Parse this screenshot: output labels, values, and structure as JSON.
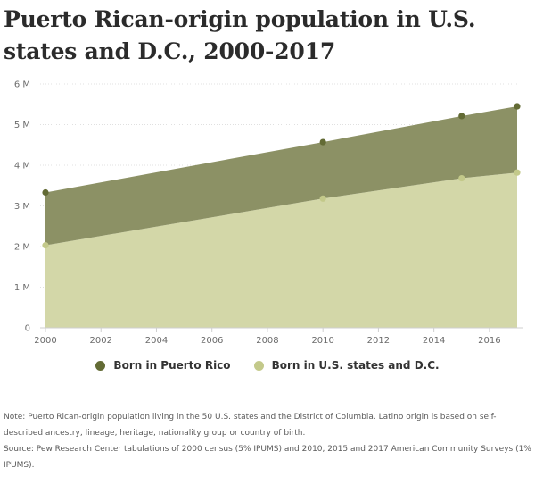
{
  "title": "Puerto Rican-origin population in U.S. states and D.C., 2000-2017",
  "note": "Note: Puerto Rican-origin population living in the 50 U.S. states and the District of Columbia. Latino origin is based on self-described ancestry, lineage, heritage, nationality group or country of birth.",
  "source": "Source: Pew Research Center tabulations of 2000 census (5% IPUMS) and 2010, 2015 and 2017 American Community Surveys (1% IPUMS).",
  "colors": {
    "top_fill": "#8c9165",
    "bottom_fill": "#d3d7a8",
    "top_point": "#636b35",
    "bottom_point": "#c3c98a",
    "grid": "#e0e0e0",
    "axis": "#cfcfcf"
  },
  "chart_data": {
    "type": "area",
    "stacked": true,
    "title": "Puerto Rican-origin population in U.S. states and D.C., 2000-2017",
    "x": [
      2000,
      2010,
      2015,
      2017
    ],
    "series": [
      {
        "name": "Born in U.S. states and D.C.",
        "values": [
          2.03,
          3.18,
          3.68,
          3.82
        ],
        "color": "#d3d7a8",
        "point_color": "#c3c98a"
      },
      {
        "name": "Born in Puerto Rico",
        "values": [
          1.3,
          1.39,
          1.53,
          1.63
        ],
        "color": "#8c9165",
        "point_color": "#636b35"
      }
    ],
    "xlim": [
      2000,
      2017
    ],
    "ylim": [
      0,
      6
    ],
    "x_ticks": [
      2000,
      2002,
      2004,
      2006,
      2008,
      2010,
      2012,
      2014,
      2016
    ],
    "x_tick_labels": [
      "2000",
      "2002",
      "2004",
      "2006",
      "2008",
      "2010",
      "2012",
      "2014",
      "2016"
    ],
    "y_ticks": [
      0,
      1,
      2,
      3,
      4,
      5,
      6
    ],
    "y_tick_labels": [
      "0",
      "1 M",
      "2 M",
      "3 M",
      "4 M",
      "5 M",
      "6 M"
    ],
    "grid": true,
    "legend_position": "bottom-center",
    "legend": [
      "Born in Puerto Rico",
      "Born in U.S. states and D.C."
    ]
  }
}
